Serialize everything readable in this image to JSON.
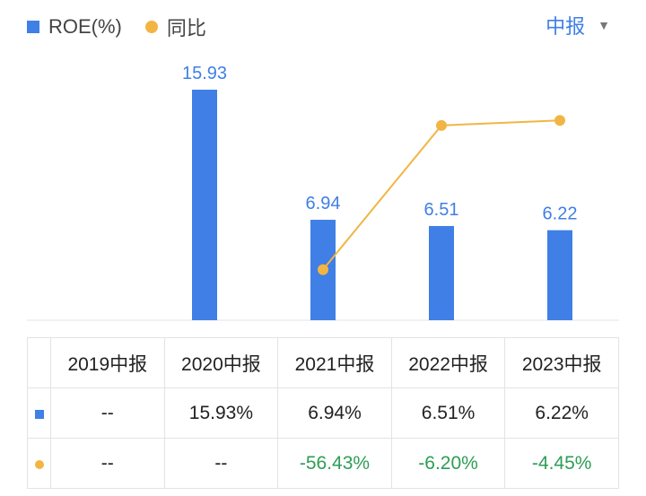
{
  "legend": {
    "bar_label": "ROE(%)",
    "line_label": "同比"
  },
  "period_select": {
    "value": "中报"
  },
  "colors": {
    "bar": "#3f7fe6",
    "line": "#f2b544",
    "negative": "#2e9d55"
  },
  "chart_data": {
    "type": "bar",
    "categories": [
      "2019中报",
      "2020中报",
      "2021中报",
      "2022中报",
      "2023中报"
    ],
    "series": [
      {
        "name": "ROE(%)",
        "type": "bar",
        "values": [
          null,
          15.93,
          6.94,
          6.51,
          6.22
        ],
        "labels": [
          "",
          "15.93",
          "6.94",
          "6.51",
          "6.22"
        ]
      },
      {
        "name": "同比",
        "type": "line",
        "values": [
          null,
          null,
          -56.43,
          -6.2,
          -4.45
        ]
      }
    ]
  },
  "table": {
    "headers": [
      "2019中报",
      "2020中报",
      "2021中报",
      "2022中报",
      "2023中报"
    ],
    "rows": [
      {
        "marker": "bar",
        "cells": [
          "--",
          "15.93%",
          "6.94%",
          "6.51%",
          "6.22%"
        ]
      },
      {
        "marker": "line",
        "cells": [
          "--",
          "--",
          "-56.43%",
          "-6.20%",
          "-4.45%"
        ]
      }
    ]
  }
}
